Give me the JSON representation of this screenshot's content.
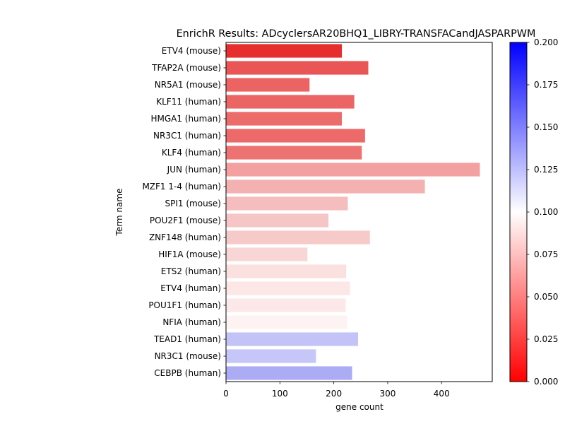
{
  "chart_data": {
    "type": "bar",
    "orientation": "horizontal",
    "title": "EnrichR Results: ADcyclersAR20BHQ1_LIBRY-TRANSFACandJASPARPWM",
    "xlabel": "gene count",
    "ylabel": "Term name",
    "xlim": [
      0,
      494
    ],
    "xticks": [
      0,
      100,
      200,
      300,
      400
    ],
    "categories": [
      "ETV4 (mouse)",
      "TFAP2A (mouse)",
      "NR5A1 (mouse)",
      "KLF11 (human)",
      "HMGA1 (human)",
      "NR3C1 (human)",
      "KLF4 (human)",
      "JUN (human)",
      "MZF1 1-4 (human)",
      "SPI1 (mouse)",
      "POU2F1 (mouse)",
      "ZNF148 (human)",
      "HIF1A (mouse)",
      "ETS2 (human)",
      "ETV4 (human)",
      "POU1F1 (human)",
      "NFIA (human)",
      "TEAD1 (human)",
      "NR3C1 (mouse)",
      "CEBPB (human)"
    ],
    "values": [
      215,
      264,
      155,
      238,
      215,
      258,
      252,
      471,
      369,
      226,
      190,
      267,
      151,
      223,
      230,
      222,
      225,
      245,
      167,
      234
    ],
    "colors": [
      "#e62e2e",
      "#ea5656",
      "#eb6363",
      "#eb6565",
      "#ec6b6b",
      "#ec6a6a",
      "#ed7272",
      "#f2a0a0",
      "#f3b1b1",
      "#f5bdbd",
      "#f6c6c6",
      "#f7caca",
      "#f9d6d6",
      "#fbe0e0",
      "#fce6e6",
      "#fce8e8",
      "#fef3f3",
      "#c3c3f8",
      "#c6c6f8",
      "#acacf5"
    ],
    "colorbar": {
      "min": 0.0,
      "max": 0.2,
      "ticks": [
        "0.000",
        "0.025",
        "0.050",
        "0.075",
        "0.100",
        "0.125",
        "0.150",
        "0.175",
        "0.200"
      ],
      "colormap": [
        "#ff0000",
        "#ffffff",
        "#0000ff"
      ]
    }
  }
}
